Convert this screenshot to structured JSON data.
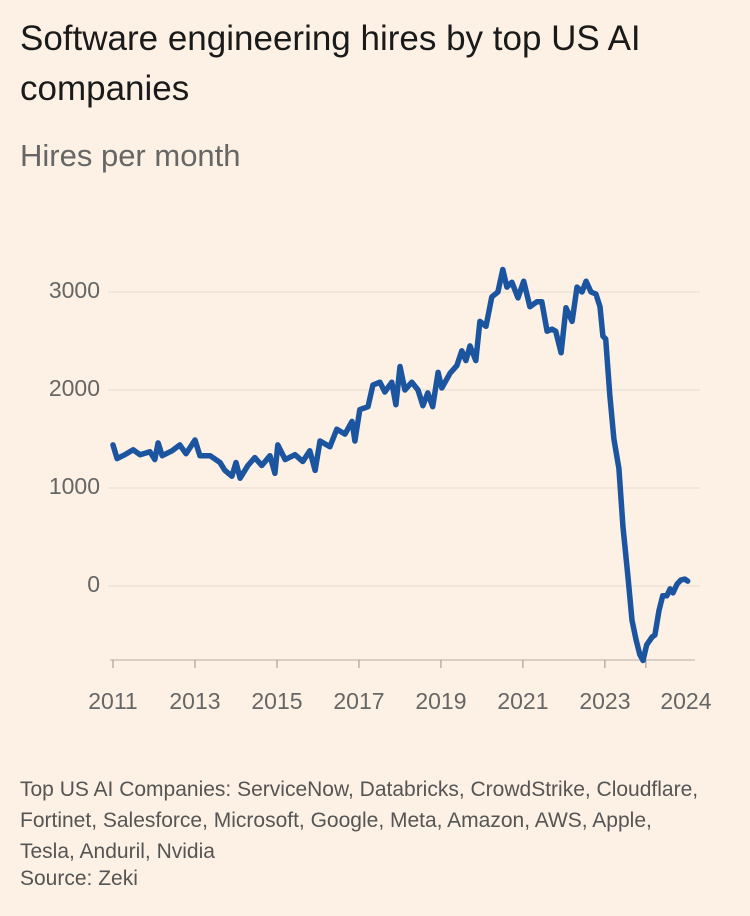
{
  "chart_data": {
    "type": "line",
    "title": "Software engineering hires by top US AI companies",
    "subtitle": "Hires per month",
    "note": "Top US AI Companies: ServiceNow, Databricks, CrowdStrike, Cloudflare, Fortinet, Salesforce, Microsoft, Google, Meta, Amazon, AWS, Apple, Tesla, Anduril, Nvidia",
    "source": "Source: Zeki",
    "xlim": [
      2011,
      2025.1
    ],
    "xticks": [
      2011,
      2013,
      2015,
      2017,
      2019,
      2021,
      2023,
      2024
    ],
    "ylim": [
      -800,
      3300
    ],
    "yticks": [
      0,
      1000,
      2000,
      3000
    ],
    "grid": true,
    "series": [
      {
        "name": "Hires",
        "color": "#1b55a0",
        "x": [
          2011.0,
          2011.1,
          2011.29,
          2011.49,
          2011.66,
          2011.9,
          2012.02,
          2012.1,
          2012.2,
          2012.44,
          2012.63,
          2012.78,
          2013.0,
          2013.12,
          2013.37,
          2013.61,
          2013.73,
          2013.9,
          2014.0,
          2014.1,
          2014.29,
          2014.46,
          2014.63,
          2014.83,
          2014.95,
          2015.02,
          2015.2,
          2015.44,
          2015.63,
          2015.8,
          2015.93,
          2016.05,
          2016.29,
          2016.46,
          2016.66,
          2016.83,
          2016.9,
          2017.02,
          2017.22,
          2017.34,
          2017.51,
          2017.63,
          2017.8,
          2017.9,
          2018.0,
          2018.12,
          2018.29,
          2018.44,
          2018.56,
          2018.68,
          2018.8,
          2018.93,
          2019.02,
          2019.22,
          2019.39,
          2019.51,
          2019.61,
          2019.71,
          2019.85,
          2019.95,
          2020.1,
          2020.24,
          2020.39,
          2020.51,
          2020.61,
          2020.73,
          2020.88,
          2021.02,
          2021.17,
          2021.34,
          2021.46,
          2021.59,
          2021.71,
          2021.8,
          2021.93,
          2022.05,
          2022.2,
          2022.32,
          2022.44,
          2022.54,
          2022.66,
          2022.78,
          2022.88,
          2022.95,
          2023.02,
          2023.12,
          2023.22,
          2023.34,
          2023.44,
          2023.56,
          2023.66,
          2023.76,
          2023.85,
          2023.93,
          2024.02,
          2024.15,
          2024.22,
          2024.32,
          2024.41,
          2024.51,
          2024.59,
          2024.66,
          2024.76,
          2024.85,
          2024.95,
          2025.02
        ],
        "values": [
          1440,
          1300,
          1340,
          1390,
          1340,
          1370,
          1290,
          1460,
          1330,
          1380,
          1440,
          1350,
          1490,
          1330,
          1330,
          1260,
          1180,
          1120,
          1260,
          1100,
          1230,
          1310,
          1230,
          1330,
          1150,
          1440,
          1290,
          1340,
          1270,
          1380,
          1180,
          1480,
          1420,
          1600,
          1550,
          1680,
          1480,
          1800,
          1830,
          2050,
          2080,
          1980,
          2080,
          1850,
          2240,
          2000,
          2080,
          2000,
          1840,
          1970,
          1830,
          2180,
          2020,
          2170,
          2250,
          2400,
          2300,
          2450,
          2300,
          2700,
          2650,
          2950,
          3000,
          3230,
          3050,
          3100,
          2940,
          3110,
          2850,
          2900,
          2900,
          2600,
          2620,
          2600,
          2380,
          2840,
          2700,
          3050,
          3000,
          3110,
          3000,
          2980,
          2850,
          2550,
          2520,
          1950,
          1500,
          1200,
          600,
          100,
          -350,
          -550,
          -700,
          -760,
          -600,
          -520,
          -500,
          -250,
          -100,
          -100,
          -30,
          -70,
          20,
          60,
          70,
          50
        ]
      }
    ]
  }
}
